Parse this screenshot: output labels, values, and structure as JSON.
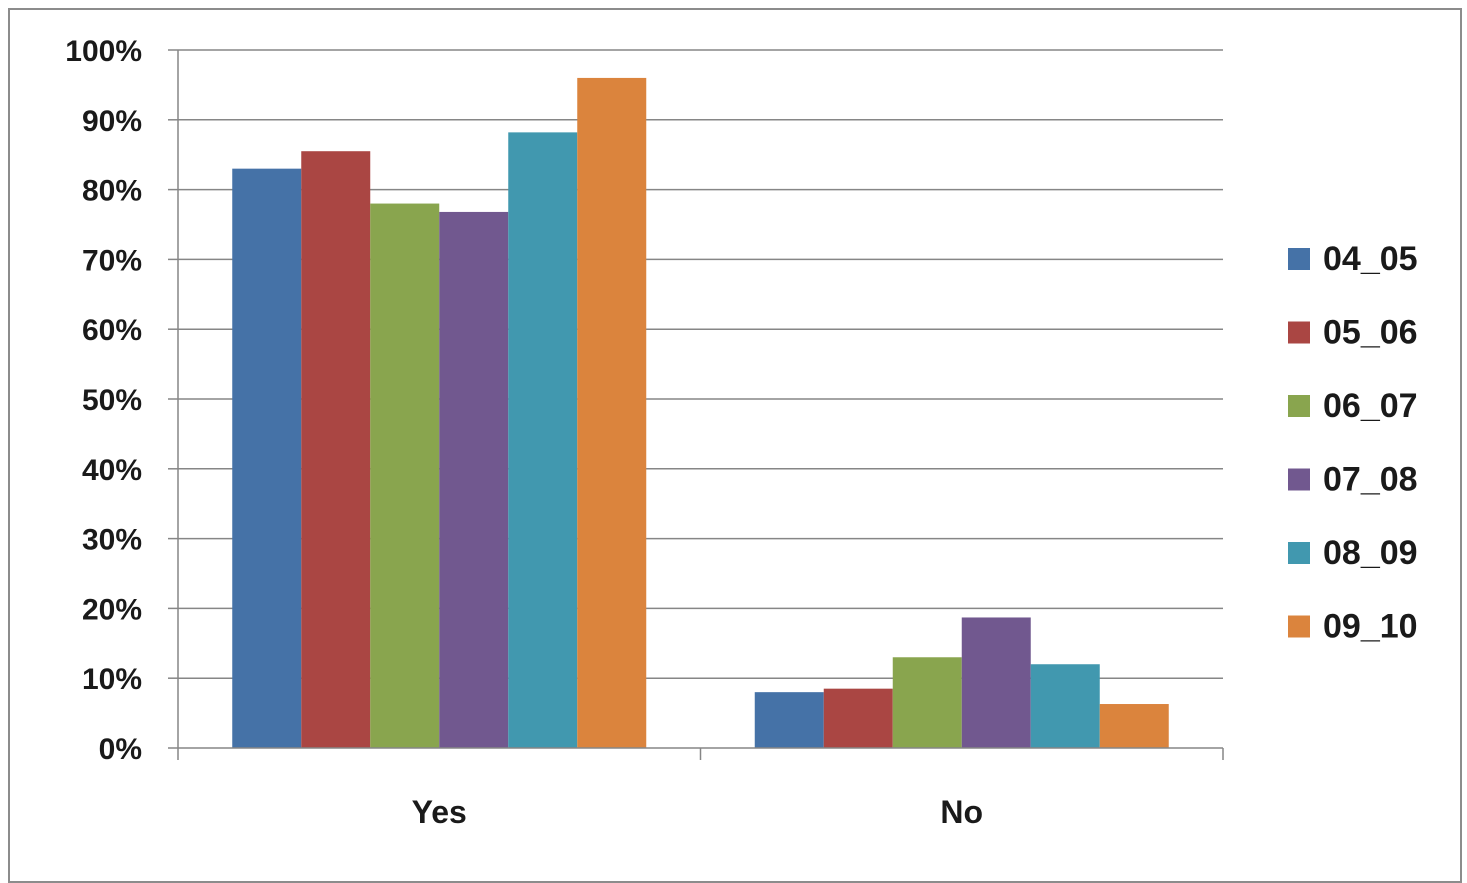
{
  "chart_data": {
    "type": "bar",
    "title": "",
    "xlabel": "",
    "ylabel": "",
    "categories": [
      "Yes",
      "No"
    ],
    "series": [
      {
        "name": "04_05",
        "color": "#4572a7",
        "values": [
          83,
          8
        ]
      },
      {
        "name": "05_06",
        "color": "#aa4643",
        "values": [
          85.5,
          8.5
        ]
      },
      {
        "name": "06_07",
        "color": "#89a54e",
        "values": [
          78,
          13
        ]
      },
      {
        "name": "07_08",
        "color": "#71588f",
        "values": [
          76.8,
          18.7
        ]
      },
      {
        "name": "08_09",
        "color": "#4198af",
        "values": [
          88.2,
          12
        ]
      },
      {
        "name": "09_10",
        "color": "#db843d",
        "values": [
          96,
          6.3
        ]
      }
    ],
    "ylim": [
      0,
      100
    ],
    "y_ticks": [
      "0%",
      "10%",
      "20%",
      "30%",
      "40%",
      "50%",
      "60%",
      "70%",
      "80%",
      "90%",
      "100%"
    ],
    "grid": true,
    "legend_position": "right"
  }
}
